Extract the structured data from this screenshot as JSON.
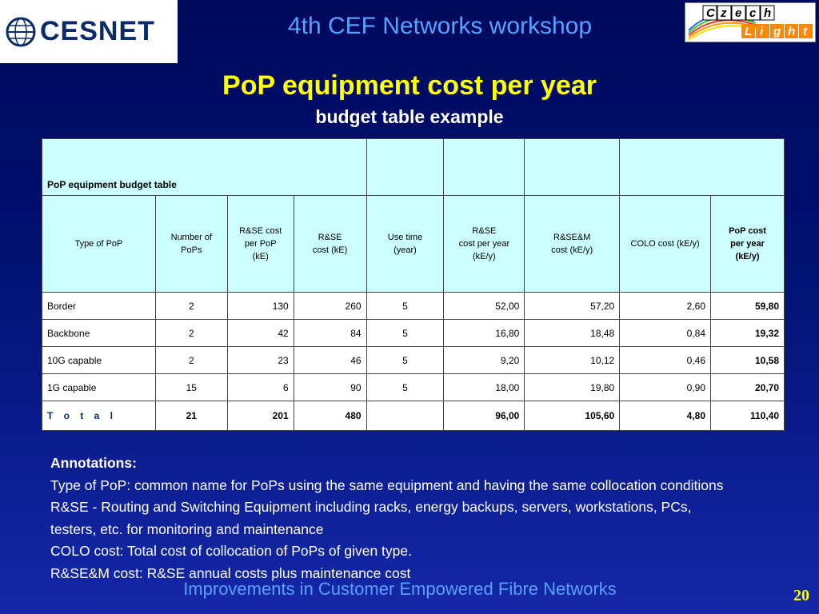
{
  "header": {
    "logo_left_text": "CESNET",
    "logo_right_text": [
      "Czech",
      "Light"
    ],
    "title": "4th CEF Networks workshop"
  },
  "slide": {
    "title": "PoP equipment cost per year",
    "subtitle": "budget table example"
  },
  "table": {
    "caption": "PoP equipment budget table",
    "headers": [
      "Type of PoP",
      "Number of\n   PoPs",
      "R&SE cost\nper PoP\n(kE)",
      "R&SE\ncost (kE)",
      "Use time\n(year)",
      "R&SE\ncost per year\n(kE/y)",
      "R&SE&M\ncost (kE/y)",
      "COLO cost (kE/y)",
      "PoP cost\nper year\n(kE/y)"
    ],
    "rows": [
      [
        "Border",
        "2",
        "130",
        "260",
        "5",
        "52,00",
        "57,20",
        "2,60",
        "59,80"
      ],
      [
        "Backbone",
        "2",
        "42",
        "84",
        "5",
        "16,80",
        "18,48",
        "0,84",
        "19,32"
      ],
      [
        "10G capable",
        "2",
        "23",
        "46",
        "5",
        "9,20",
        "10,12",
        "0,46",
        "10,58"
      ],
      [
        "1G capable",
        "15",
        "6",
        "90",
        "5",
        "18,00",
        "19,80",
        "0,90",
        "20,70"
      ]
    ],
    "total": [
      "T o t a l",
      "21",
      "201",
      "480",
      "",
      "96,00",
      "105,60",
      "4,80",
      "110,40"
    ]
  },
  "annotations": {
    "heading": "Annotations:",
    "lines": [
      "Type of PoP: common name for PoPs using the same equipment and having the same collocation conditions",
      "R&SE - Routing and Switching Equipment including racks, energy backups, servers, workstations, PCs,",
      "testers, etc. for monitoring and maintenance",
      "COLO cost: Total cost of collocation of PoPs of given type.",
      "R&SE&M cost: R&SE annual costs plus maintenance cost"
    ]
  },
  "footer": {
    "text": "Improvements in Customer Empowered Fibre Networks",
    "page_number": "20"
  },
  "colors": {
    "title_yellow": "#ffff00",
    "header_blue": "#5aa0ff",
    "table_header_bg": "#ccffff",
    "background_top": "#000a5c",
    "background_bottom": "#1428a8"
  }
}
